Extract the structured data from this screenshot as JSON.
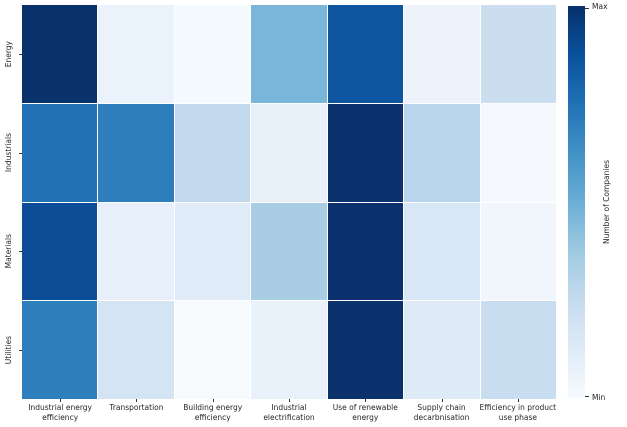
{
  "chart_data": {
    "type": "heatmap",
    "title": "",
    "colormap": "Blues",
    "grid_line_color": "#ffffff",
    "rows": [
      "Energy",
      "Industrials",
      "Materials",
      "Utilities"
    ],
    "columns": [
      "Industrial energy efficiency",
      "Transportation",
      "Building energy efficiency",
      "Industrial electrification",
      "Use of renewable energy",
      "Supply chain decarbnisation",
      "Efficiency in product use phase"
    ],
    "values_normalized_min0_max1": [
      [
        1.0,
        0.06,
        0.02,
        0.47,
        0.83,
        0.05,
        0.24
      ],
      [
        0.74,
        0.68,
        0.27,
        0.08,
        1.0,
        0.32,
        0.03
      ],
      [
        0.88,
        0.09,
        0.13,
        0.38,
        1.0,
        0.16,
        0.04
      ],
      [
        0.68,
        0.17,
        0.01,
        0.07,
        1.0,
        0.11,
        0.25
      ]
    ],
    "cell_colors": [
      [
        "#09326b",
        "#eaf2fb",
        "#f5fafe",
        "#7ab6d9",
        "#0e559f",
        "#edf3fb",
        "#cbdeef"
      ],
      [
        "#2171b5",
        "#2e7ebc",
        "#c2d9ed",
        "#e8f0fa",
        "#0a316b",
        "#b9d5eb",
        "#f5f9fe"
      ],
      [
        "#0d4c96",
        "#e7f0fa",
        "#dfebf7",
        "#a9cee4",
        "#0a316b",
        "#d8e7f5",
        "#f0f6fc"
      ],
      [
        "#2e7ebc",
        "#d4e4f3",
        "#f7fbfe",
        "#e9f1fa",
        "#0a316b",
        "#dfeaf7",
        "#c9ddf0"
      ]
    ],
    "colorbar": {
      "label": "Number of Companies",
      "max_label": "Max",
      "min_label": "Min",
      "gradient_stops": [
        "#08306b",
        "#08519c",
        "#2171b5",
        "#4292c6",
        "#6baed6",
        "#9ecae1",
        "#c6dbef",
        "#deebf7",
        "#f7fbff"
      ]
    }
  }
}
